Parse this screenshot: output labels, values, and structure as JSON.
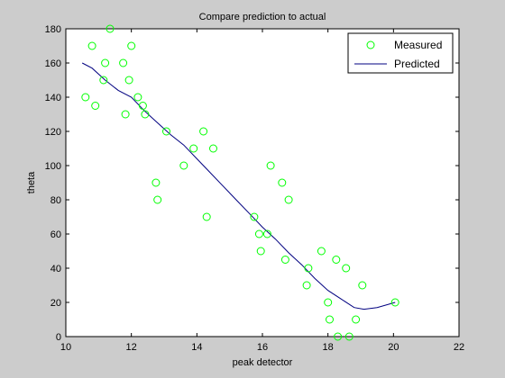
{
  "chart_data": {
    "type": "scatter",
    "title": "Compare prediction to actual",
    "xlabel": "peak detector",
    "ylabel": "theta",
    "xlim": [
      10,
      22
    ],
    "ylim": [
      0,
      180
    ],
    "xticks": [
      "10",
      "12",
      "14",
      "16",
      "18",
      "20",
      "22"
    ],
    "yticks": [
      "0",
      "20",
      "40",
      "60",
      "80",
      "100",
      "120",
      "140",
      "160",
      "180"
    ],
    "grid": false,
    "legend_position": "top-right",
    "series": [
      {
        "name": "Measured",
        "kind": "markers",
        "marker": "circle",
        "color": "#00ff00",
        "points": [
          [
            10.6,
            140
          ],
          [
            10.8,
            170
          ],
          [
            10.9,
            135
          ],
          [
            11.15,
            150
          ],
          [
            11.2,
            160
          ],
          [
            11.35,
            180
          ],
          [
            11.75,
            160
          ],
          [
            11.82,
            130
          ],
          [
            11.93,
            150
          ],
          [
            12.0,
            170
          ],
          [
            12.2,
            140
          ],
          [
            12.35,
            135
          ],
          [
            12.42,
            130
          ],
          [
            12.75,
            90
          ],
          [
            12.8,
            80
          ],
          [
            13.07,
            120
          ],
          [
            13.6,
            100
          ],
          [
            13.9,
            110
          ],
          [
            14.2,
            120
          ],
          [
            14.3,
            70
          ],
          [
            14.5,
            110
          ],
          [
            15.75,
            70
          ],
          [
            15.9,
            60
          ],
          [
            15.95,
            50
          ],
          [
            16.15,
            60
          ],
          [
            16.25,
            100
          ],
          [
            16.6,
            90
          ],
          [
            16.7,
            45
          ],
          [
            16.8,
            80
          ],
          [
            17.35,
            30
          ],
          [
            17.4,
            40
          ],
          [
            17.8,
            50
          ],
          [
            18.0,
            20
          ],
          [
            18.05,
            10
          ],
          [
            18.25,
            45
          ],
          [
            18.3,
            0
          ],
          [
            18.55,
            40
          ],
          [
            18.65,
            0
          ],
          [
            18.85,
            10
          ],
          [
            19.05,
            30
          ],
          [
            20.05,
            20
          ]
        ]
      },
      {
        "name": "Predicted",
        "kind": "line",
        "color": "#000080",
        "points": [
          [
            10.5,
            160
          ],
          [
            10.8,
            157
          ],
          [
            11.2,
            150
          ],
          [
            11.6,
            144
          ],
          [
            12.0,
            140
          ],
          [
            12.4,
            132
          ],
          [
            12.8,
            125
          ],
          [
            13.2,
            118
          ],
          [
            13.6,
            112
          ],
          [
            14.0,
            104
          ],
          [
            14.4,
            96
          ],
          [
            14.8,
            88
          ],
          [
            15.2,
            80
          ],
          [
            15.6,
            72
          ],
          [
            16.0,
            64
          ],
          [
            16.4,
            57
          ],
          [
            16.8,
            49
          ],
          [
            17.2,
            42
          ],
          [
            17.6,
            34
          ],
          [
            18.0,
            27
          ],
          [
            18.4,
            22
          ],
          [
            18.8,
            17
          ],
          [
            19.1,
            16
          ],
          [
            19.5,
            17
          ],
          [
            20.05,
            20
          ]
        ]
      }
    ]
  }
}
